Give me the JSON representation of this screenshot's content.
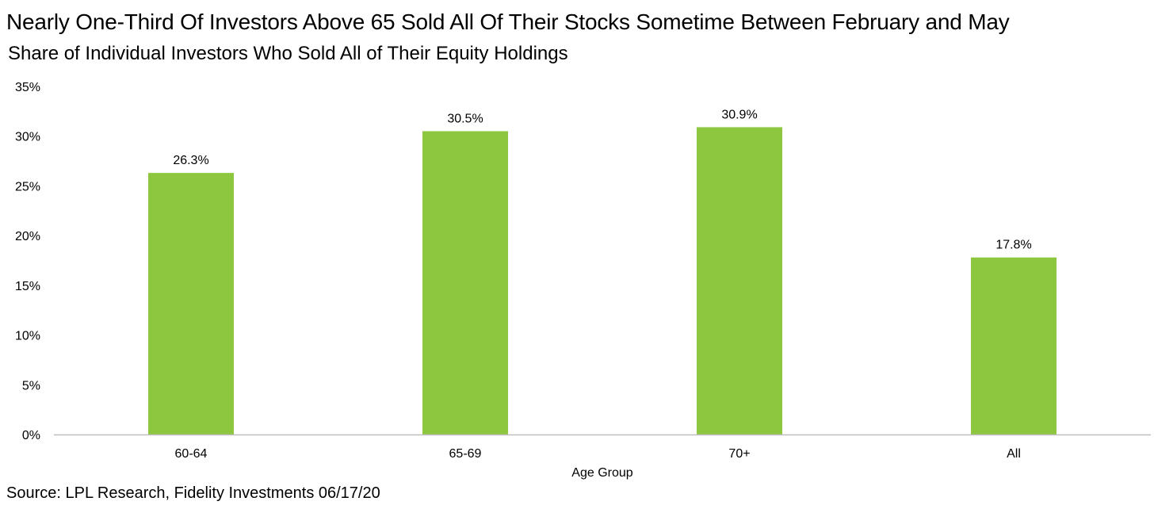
{
  "title": "Nearly One-Third Of Investors Above 65 Sold All Of Their Stocks Sometime Between February and May",
  "subtitle": "Share of Individual Investors Who Sold All of Their Equity Holdings",
  "source": "Source: LPL Research, Fidelity Investments 06/17/20",
  "chart_data": {
    "type": "bar",
    "title": "Nearly One-Third Of Investors Above 65 Sold All Of Their Stocks Sometime Between February and May",
    "subtitle": "Share of Individual Investors Who Sold All of Their Equity Holdings",
    "xlabel": "Age Group",
    "ylabel": "",
    "categories": [
      "60-64",
      "65-69",
      "70+",
      "All"
    ],
    "values": [
      26.3,
      30.5,
      30.9,
      17.8
    ],
    "data_labels": [
      "26.3%",
      "30.5%",
      "30.9%",
      "17.8%"
    ],
    "ylim": [
      0,
      35
    ],
    "y_ticks": [
      0,
      5,
      10,
      15,
      20,
      25,
      30,
      35
    ],
    "y_tick_labels": [
      "0%",
      "5%",
      "10%",
      "15%",
      "20%",
      "25%",
      "30%",
      "35%"
    ],
    "bar_color": "#8DC63F",
    "axis_color": "#BFBFBF",
    "grid": false,
    "legend": "none"
  }
}
